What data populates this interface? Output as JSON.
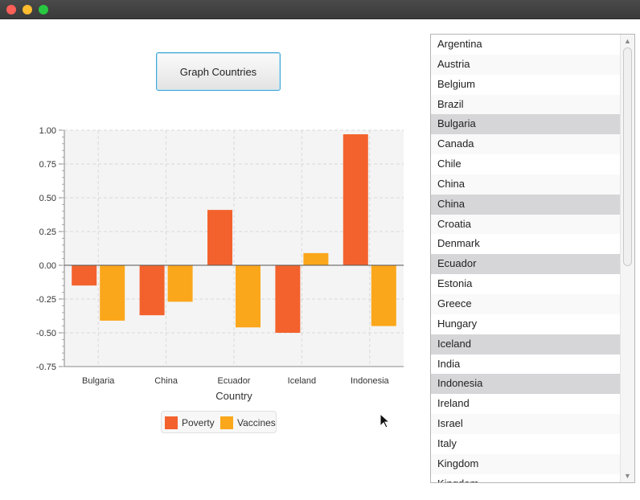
{
  "window": {
    "controls": [
      "close",
      "minimize",
      "zoom"
    ]
  },
  "graph_button": {
    "label": "Graph Countries"
  },
  "chart_data": {
    "type": "bar",
    "categories": [
      "Bulgaria",
      "China",
      "Ecuador",
      "Iceland",
      "Indonesia"
    ],
    "series": [
      {
        "name": "Poverty",
        "values": [
          -0.15,
          -0.37,
          0.41,
          -0.5,
          0.97
        ],
        "color": "#f3622d"
      },
      {
        "name": "Vaccines",
        "values": [
          -0.41,
          -0.27,
          -0.46,
          0.09,
          -0.45
        ],
        "color": "#fba71b"
      }
    ],
    "xlabel": "Country",
    "ylabel": "",
    "ylim": [
      -0.75,
      1.0
    ],
    "yticks": [
      "1.00",
      "0.75",
      "0.50",
      "0.25",
      "0.00",
      "-0.25",
      "-0.50",
      "-0.75"
    ],
    "grid": true,
    "legend": "bottom"
  },
  "country_list": {
    "items": [
      {
        "label": "Argentina",
        "selected": false
      },
      {
        "label": "Austria",
        "selected": false
      },
      {
        "label": "Belgium",
        "selected": false
      },
      {
        "label": "Brazil",
        "selected": false
      },
      {
        "label": "Bulgaria",
        "selected": true
      },
      {
        "label": "Canada",
        "selected": false
      },
      {
        "label": "Chile",
        "selected": false
      },
      {
        "label": "China",
        "selected": false
      },
      {
        "label": "China",
        "selected": true
      },
      {
        "label": "Croatia",
        "selected": false
      },
      {
        "label": "Denmark",
        "selected": false
      },
      {
        "label": "Ecuador",
        "selected": true
      },
      {
        "label": "Estonia",
        "selected": false
      },
      {
        "label": "Greece",
        "selected": false
      },
      {
        "label": "Hungary",
        "selected": false
      },
      {
        "label": "Iceland",
        "selected": true
      },
      {
        "label": "India",
        "selected": false
      },
      {
        "label": "Indonesia",
        "selected": true
      },
      {
        "label": "Ireland",
        "selected": false
      },
      {
        "label": "Israel",
        "selected": false
      },
      {
        "label": "Italy",
        "selected": false
      },
      {
        "label": "Kingdom",
        "selected": false
      },
      {
        "label": "Kingdom",
        "selected": false
      }
    ]
  }
}
